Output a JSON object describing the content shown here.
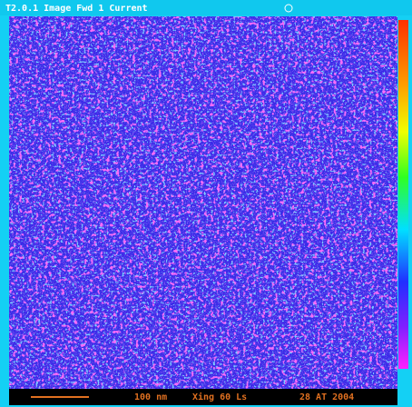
{
  "title_bar": {
    "text": "T2.0.1 Image Fwd 1 Current"
  },
  "status_bar": {
    "scale": "100 nm",
    "info": "Xing 60 Ls",
    "date": "28 AT 2004"
  }
}
